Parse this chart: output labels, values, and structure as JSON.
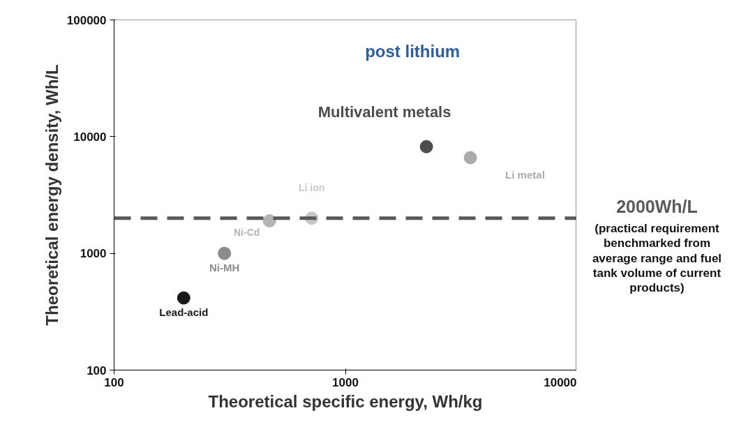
{
  "chart_data": {
    "type": "scatter",
    "xlabel": "Theoretical specific energy, Wh/kg",
    "ylabel": "Theoretical energy density, Wh/L",
    "log": "xy",
    "xlim": [
      100,
      10000
    ],
    "xticks": [
      100,
      1000,
      10000
    ],
    "ylim": [
      100,
      100000
    ],
    "yticks": [
      100,
      1000,
      10000,
      100000
    ],
    "grid": false,
    "marker": "circle",
    "series": [
      {
        "name": "Lead-acid",
        "color": "#1a1a1a",
        "x": [
          200
        ],
        "values": [
          415
        ]
      },
      {
        "name": "Ni-MH",
        "color": "#8c8c8c",
        "x": [
          300
        ],
        "values": [
          1000
        ]
      },
      {
        "name": "Ni-Cd",
        "color": "#b4b4b4",
        "x": [
          470
        ],
        "values": [
          1900
        ]
      },
      {
        "name": "Li ion",
        "color": "#c8c8c8",
        "x": [
          715
        ],
        "values": [
          2000
        ]
      },
      {
        "name": "Multivalent metals",
        "color": "#4d4d4d",
        "x": [
          2240
        ],
        "values": [
          8200
        ]
      },
      {
        "name": "Li metal",
        "color": "#ababab",
        "x": [
          3470
        ],
        "values": [
          6600
        ]
      }
    ],
    "ref_lines": [
      {
        "axis": "y",
        "value": 2000,
        "label": "2000Wh/L",
        "color": "#595959",
        "line_style": "dashed"
      }
    ],
    "annotations": [
      "post lithium",
      "(practical requirement benchmarked from average range and fuel tank volume of current products)"
    ]
  }
}
